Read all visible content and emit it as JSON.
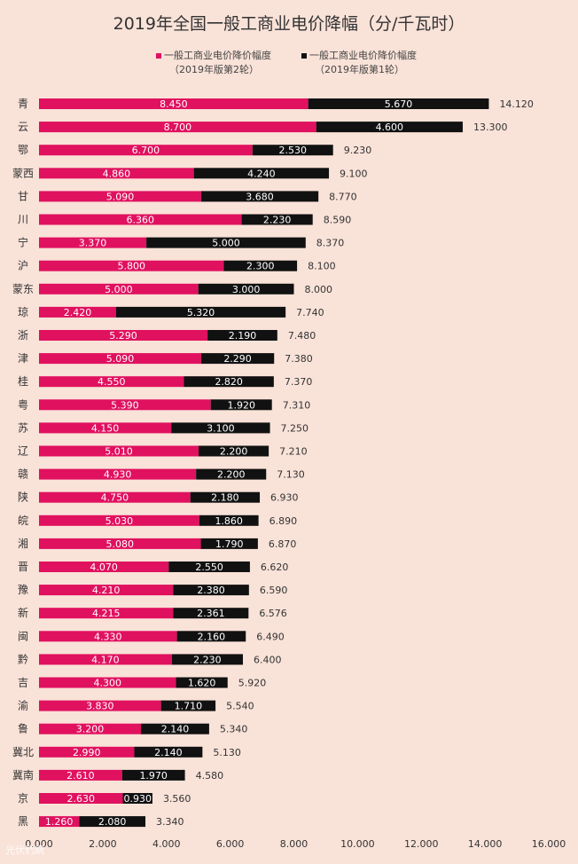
{
  "chart_data": {
    "type": "bar",
    "orientation": "horizontal",
    "stacked": true,
    "title": "2019年全国一般工商业电价降幅（分/千瓦时）",
    "legend": [
      {
        "line1": "一般工商业电价降价幅度",
        "line2": "（2019年版第2轮）",
        "color": "#e0115f"
      },
      {
        "line1": "一般工商业电价降价幅度",
        "line2": "（2019年版第1轮）",
        "color": "#111111"
      }
    ],
    "categories": [
      "青",
      "云",
      "鄂",
      "蒙西",
      "甘",
      "川",
      "宁",
      "沪",
      "蒙东",
      "琼",
      "浙",
      "津",
      "桂",
      "粤",
      "苏",
      "辽",
      "赣",
      "陕",
      "皖",
      "湘",
      "晋",
      "豫",
      "新",
      "闽",
      "黔",
      "吉",
      "渝",
      "鲁",
      "冀北",
      "冀南",
      "京",
      "黑"
    ],
    "series": [
      {
        "name": "一般工商业电价降价幅度（2019年版第2轮）",
        "color": "#e0115f",
        "labels": [
          "8.450",
          "8.700",
          "6.700",
          "4.860",
          "5.090",
          "6.360",
          "3.370",
          "5.800",
          "5.000",
          "2.420",
          "5.290",
          "5.090",
          "4.550",
          "5.390",
          "4.150",
          "5.010",
          "4.930",
          "4.750",
          "5.030",
          "5.080",
          "4.070",
          "4.210",
          "4.215",
          "4.330",
          "4.170",
          "4.300",
          "3.830",
          "3.200",
          "2.990",
          "2.610",
          "2.630",
          "1.260"
        ],
        "values": [
          8.45,
          8.7,
          6.7,
          4.86,
          5.09,
          6.36,
          3.37,
          5.8,
          5.0,
          2.42,
          5.29,
          5.09,
          4.55,
          5.39,
          4.15,
          5.01,
          4.93,
          4.75,
          5.03,
          5.08,
          4.07,
          4.21,
          4.215,
          4.33,
          4.17,
          4.3,
          3.83,
          3.2,
          2.99,
          2.61,
          2.63,
          1.26
        ]
      },
      {
        "name": "一般工商业电价降价幅度（2019年版第1轮）",
        "color": "#111111",
        "labels": [
          "5.670",
          "4.600",
          "2.530",
          "4.240",
          "3.680",
          "2.230",
          "5.000",
          "2.300",
          "3.000",
          "5.320",
          "2.190",
          "2.290",
          "2.820",
          "1.920",
          "3.100",
          "2.200",
          "2.200",
          "2.180",
          "1.860",
          "1.790",
          "2.550",
          "2.380",
          "2.361",
          "2.160",
          "2.230",
          "1.620",
          "1.710",
          "2.140",
          "2.140",
          "1.970",
          "0.930",
          "2.080"
        ],
        "values": [
          5.67,
          4.6,
          2.53,
          4.24,
          3.68,
          2.23,
          5.0,
          2.3,
          3.0,
          5.32,
          2.19,
          2.29,
          2.82,
          1.92,
          3.1,
          2.2,
          2.2,
          2.18,
          1.86,
          1.79,
          2.55,
          2.38,
          2.361,
          2.16,
          2.23,
          1.62,
          1.71,
          2.14,
          2.14,
          1.97,
          0.93,
          2.08
        ]
      }
    ],
    "total_labels": [
      "14.120",
      "13.300",
      "9.230",
      "9.100",
      "8.770",
      "8.590",
      "8.370",
      "8.100",
      "8.000",
      "7.740",
      "7.480",
      "7.380",
      "7.370",
      "7.310",
      "7.250",
      "7.210",
      "7.130",
      "6.930",
      "6.890",
      "6.870",
      "6.620",
      "6.590",
      "6.576",
      "6.490",
      "6.400",
      "5.920",
      "5.540",
      "5.340",
      "5.130",
      "4.580",
      "3.560",
      "3.340"
    ],
    "xlim": [
      0,
      16
    ],
    "xticks": [
      "0.000",
      "2.000",
      "4.000",
      "6.000",
      "8.000",
      "10.000",
      "12.000",
      "14.000",
      "16.000"
    ],
    "xtick_values": [
      0,
      2,
      4,
      6,
      8,
      10,
      12,
      14,
      16
    ],
    "grid": false
  },
  "colors": {
    "background": "#f9e2d8",
    "series1": "#e0115f",
    "series2": "#111111"
  },
  "watermark": "光伏們網"
}
